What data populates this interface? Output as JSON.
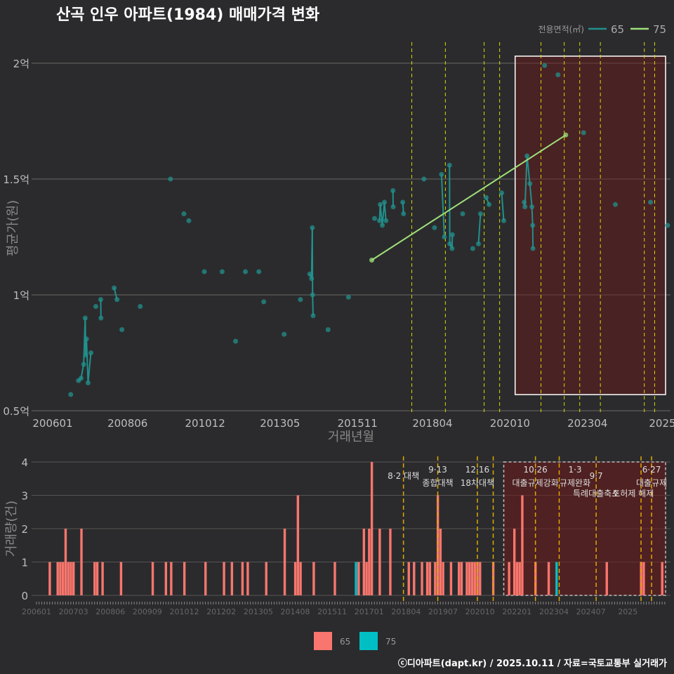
{
  "chart_data": [
    {
      "type": "line",
      "title": "산곡 인우 아파트(1984) 매매가격 변화",
      "xlabel": "거래년월",
      "ylabel": "평균가(원)",
      "legend_title": "전용면적(㎡)",
      "legend_position": "top-right",
      "x_unit": "months since 2006-01",
      "xticks": [
        {
          "m": 0,
          "label": "200601"
        },
        {
          "m": 29,
          "label": "200806"
        },
        {
          "m": 59,
          "label": "201012"
        },
        {
          "m": 88,
          "label": "201305"
        },
        {
          "m": 118,
          "label": "201511"
        },
        {
          "m": 147,
          "label": "201804"
        },
        {
          "m": 177,
          "label": "202010"
        },
        {
          "m": 207,
          "label": "202304"
        },
        {
          "m": 236,
          "label": "2025"
        }
      ],
      "yticks": [
        {
          "v": 0.5,
          "label": "0.5억"
        },
        {
          "v": 1,
          "label": "1억"
        },
        {
          "v": 1.5,
          "label": "1.5억"
        },
        {
          "v": 2,
          "label": "2억"
        }
      ],
      "ylim": [
        0.5,
        2.05
      ],
      "xlim": [
        -8,
        238
      ],
      "highlight_range": [
        179,
        238
      ],
      "policy_months": [
        139,
        152,
        167,
        173,
        189,
        198,
        204,
        212,
        229,
        233
      ],
      "series": [
        {
          "name": "65",
          "color": "#21908C",
          "points": [
            [
              7,
              0.57
            ],
            [
              10,
              0.63
            ],
            [
              11,
              0.64
            ],
            [
              12,
              0.7
            ],
            [
              12.6,
              0.9
            ],
            [
              12.8,
              0.74
            ],
            [
              13.1,
              0.81
            ],
            [
              13.7,
              0.62
            ],
            [
              14.8,
              0.75
            ],
            [
              16.7,
              0.95
            ],
            [
              18.6,
              0.98
            ],
            [
              18.7,
              0.9
            ],
            [
              23.8,
              1.03
            ],
            [
              24.9,
              0.98
            ],
            [
              26.8,
              0.85
            ],
            [
              33.9,
              0.95
            ],
            [
              45.6,
              1.5
            ],
            [
              50.8,
              1.35
            ],
            [
              52.7,
              1.32
            ],
            [
              58.7,
              1.1
            ],
            [
              65.6,
              1.1
            ],
            [
              70.8,
              0.8
            ],
            [
              74.6,
              1.1
            ],
            [
              79.8,
              1.1
            ],
            [
              81.7,
              0.97
            ],
            [
              89.6,
              0.83
            ],
            [
              95.9,
              0.98
            ],
            [
              99.5,
              1.09
            ],
            [
              100.2,
              1.07
            ],
            [
              100.5,
              1.29
            ],
            [
              100.6,
              1.0
            ],
            [
              100.8,
              0.91
            ],
            [
              106.6,
              0.85
            ],
            [
              114.5,
              0.99
            ],
            [
              124.6,
              1.33
            ],
            [
              126.5,
              1.32
            ],
            [
              126.8,
              1.39
            ],
            [
              127.6,
              1.3
            ],
            [
              128.4,
              1.4
            ],
            [
              129,
              1.32
            ],
            [
              131.7,
              1.45
            ],
            [
              131.8,
              1.38
            ],
            [
              135.5,
              1.4
            ],
            [
              135.8,
              1.35
            ],
            [
              143.7,
              1.5
            ],
            [
              147.8,
              1.29
            ],
            [
              150.5,
              1.52
            ],
            [
              151.6,
              1.25
            ],
            [
              153.6,
              1.56
            ],
            [
              153.7,
              1.22
            ],
            [
              154.6,
              1.2
            ],
            [
              154.7,
              1.26
            ],
            [
              158.7,
              1.35
            ],
            [
              162.6,
              1.2
            ],
            [
              164.8,
              1.22
            ],
            [
              165.6,
              1.35
            ],
            [
              167.8,
              1.42
            ],
            [
              168.9,
              1.39
            ],
            [
              173.8,
              1.44
            ],
            [
              174.6,
              1.32
            ],
            [
              182.5,
              1.4
            ],
            [
              182.8,
              1.38
            ],
            [
              183.6,
              1.6
            ],
            [
              184.7,
              1.48
            ],
            [
              185.5,
              1.38
            ],
            [
              185.8,
              1.3
            ],
            [
              185.9,
              1.2
            ],
            [
              190.4,
              1.99
            ],
            [
              195.6,
              1.95
            ],
            [
              205.5,
              1.7
            ],
            [
              217.8,
              1.39
            ],
            [
              231.4,
              1.4
            ],
            [
              238,
              1.3
            ]
          ]
        },
        {
          "name": "75",
          "color": "#9FE07A",
          "points": [
            [
              123.5,
              1.15
            ],
            [
              198.6,
              1.69
            ]
          ]
        }
      ]
    },
    {
      "type": "bar",
      "ylabel": "거래량(건)",
      "ylim": [
        0,
        4
      ],
      "yticks": [
        0,
        1,
        2,
        3,
        4
      ],
      "xticks": [
        "200601",
        "200703",
        "200806",
        "200909",
        "201012",
        "201202",
        "201305",
        "201408",
        "201511",
        "201701",
        "201804",
        "201907",
        "202010",
        "202201",
        "202304",
        "202407",
        "2025"
      ],
      "highlight_range": [
        177,
        238
      ],
      "policy_months": [
        139,
        152,
        167,
        173,
        189,
        198,
        212,
        229,
        233
      ],
      "annotations": [
        {
          "m": 139,
          "date": "",
          "text": "8·2 대책",
          "text2": ""
        },
        {
          "m": 152,
          "date": "9·13",
          "text": "종합대책",
          "text2": ""
        },
        {
          "m": 167,
          "date": "12·16",
          "text": "18차대책",
          "text2": ""
        },
        {
          "m": 189,
          "date": "10·26",
          "text": "대출규제강화",
          "text2": ""
        },
        {
          "m": 204,
          "date": "1·3",
          "text": "규제완화",
          "text2": ""
        },
        {
          "m": 212,
          "date": "",
          "text": "9·7",
          "text2": "특례대출축소"
        },
        {
          "m": 226,
          "date": "",
          "text": "",
          "text2": "토허제 해제"
        },
        {
          "m": 233,
          "date": "6·27",
          "text": "대출규제",
          "text2": ""
        }
      ],
      "series": [
        {
          "name": "65",
          "color": "#F8766D",
          "bars": [
            [
              5,
              1
            ],
            [
              8,
              1
            ],
            [
              9,
              1
            ],
            [
              10,
              1
            ],
            [
              11,
              2
            ],
            [
              12,
              1
            ],
            [
              13,
              1
            ],
            [
              14,
              1
            ],
            [
              17,
              2
            ],
            [
              22,
              1
            ],
            [
              23,
              1
            ],
            [
              25,
              1
            ],
            [
              32,
              1
            ],
            [
              44,
              1
            ],
            [
              49,
              1
            ],
            [
              51,
              1
            ],
            [
              56,
              1
            ],
            [
              64,
              1
            ],
            [
              71,
              1
            ],
            [
              74,
              1
            ],
            [
              78,
              1
            ],
            [
              80,
              1
            ],
            [
              87,
              1
            ],
            [
              94,
              2
            ],
            [
              98,
              1
            ],
            [
              99,
              3
            ],
            [
              100,
              1
            ],
            [
              105,
              1
            ],
            [
              113,
              1
            ],
            [
              122,
              1
            ],
            [
              124,
              2
            ],
            [
              125,
              1
            ],
            [
              126,
              2
            ],
            [
              127,
              4
            ],
            [
              130,
              2
            ],
            [
              134,
              2
            ],
            [
              141,
              1
            ],
            [
              143,
              1
            ],
            [
              146,
              1
            ],
            [
              148,
              1
            ],
            [
              149,
              1
            ],
            [
              151,
              1
            ],
            [
              152,
              3
            ],
            [
              153,
              2
            ],
            [
              154,
              1
            ],
            [
              157,
              1
            ],
            [
              160,
              1
            ],
            [
              161,
              1
            ],
            [
              163,
              1
            ],
            [
              164,
              1
            ],
            [
              165,
              1
            ],
            [
              166,
              1
            ],
            [
              167,
              1
            ],
            [
              168,
              1
            ],
            [
              173,
              1
            ],
            [
              179,
              1
            ],
            [
              181,
              2
            ],
            [
              182,
              1
            ],
            [
              183,
              1
            ],
            [
              184,
              3
            ],
            [
              189,
              1
            ],
            [
              194,
              1
            ],
            [
              216,
              1
            ],
            [
              229,
              1
            ],
            [
              230,
              1
            ],
            [
              237,
              1
            ]
          ]
        },
        {
          "name": "75",
          "color": "#00BFC4",
          "bars": [
            [
              121,
              1
            ],
            [
              197,
              1
            ]
          ]
        }
      ]
    }
  ],
  "footer": "ⓒ디아파트(dapt.kr) / 2025.10.11 / 자료=국토교통부 실거래가"
}
